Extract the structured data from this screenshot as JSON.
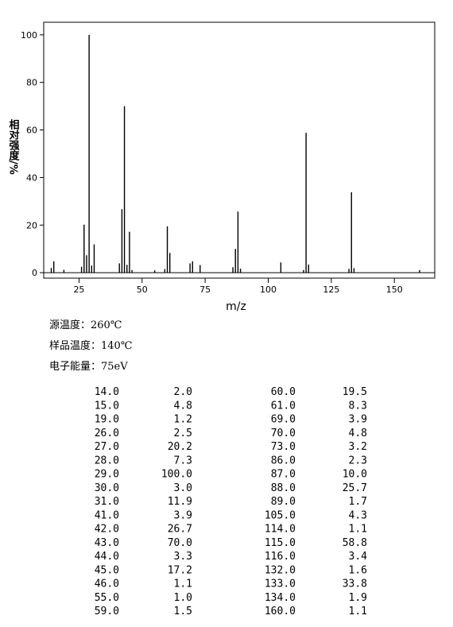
{
  "chart_data": {
    "type": "bar",
    "xlabel": "m/z",
    "ylabel": "相对强度/%",
    "x": [
      14,
      15,
      19,
      26,
      27,
      28,
      29,
      30,
      31,
      41,
      42,
      43,
      44,
      45,
      46,
      55,
      59,
      60,
      61,
      69,
      70,
      73,
      86,
      87,
      88,
      89,
      105,
      114,
      115,
      116,
      132,
      133,
      134,
      160
    ],
    "values": [
      2.0,
      4.8,
      1.2,
      2.5,
      20.2,
      7.3,
      100,
      3.0,
      11.9,
      3.9,
      26.7,
      70.0,
      3.3,
      17.2,
      1.1,
      1.0,
      1.5,
      19.5,
      8.3,
      3.9,
      4.8,
      3.2,
      2.3,
      10.0,
      25.7,
      1.7,
      4.3,
      1.1,
      58.8,
      3.4,
      1.6,
      33.8,
      1.9,
      1.1
    ],
    "color": "#000000",
    "xlim": [
      11,
      166
    ],
    "ylim": [
      -2.3,
      105.3
    ],
    "xticks": [
      25,
      50,
      75,
      100,
      125,
      150
    ],
    "yticks": [
      0,
      20,
      40,
      60,
      80,
      100
    ]
  },
  "info": [
    "源温度：260℃",
    "样品温度：140℃",
    "电子能量：75eV"
  ],
  "table": {
    "rows": [
      [
        "14.0",
        "2.0",
        "60.0",
        "19.5"
      ],
      [
        "15.0",
        "4.8",
        "61.0",
        "8.3"
      ],
      [
        "19.0",
        "1.2",
        "69.0",
        "3.9"
      ],
      [
        "26.0",
        "2.5",
        "70.0",
        "4.8"
      ],
      [
        "27.0",
        "20.2",
        "73.0",
        "3.2"
      ],
      [
        "28.0",
        "7.3",
        "86.0",
        "2.3"
      ],
      [
        "29.0",
        "100.0",
        "87.0",
        "10.0"
      ],
      [
        "30.0",
        "3.0",
        "88.0",
        "25.7"
      ],
      [
        "31.0",
        "11.9",
        "89.0",
        "1.7"
      ],
      [
        "41.0",
        "3.9",
        "105.0",
        "4.3"
      ],
      [
        "42.0",
        "26.7",
        "114.0",
        "1.1"
      ],
      [
        "43.0",
        "70.0",
        "115.0",
        "58.8"
      ],
      [
        "44.0",
        "3.3",
        "116.0",
        "3.4"
      ],
      [
        "45.0",
        "17.2",
        "132.0",
        "1.6"
      ],
      [
        "46.0",
        "1.1",
        "133.0",
        "33.8"
      ],
      [
        "55.0",
        "1.0",
        "134.0",
        "1.9"
      ],
      [
        "59.0",
        "1.5",
        "160.0",
        "1.1"
      ]
    ]
  }
}
